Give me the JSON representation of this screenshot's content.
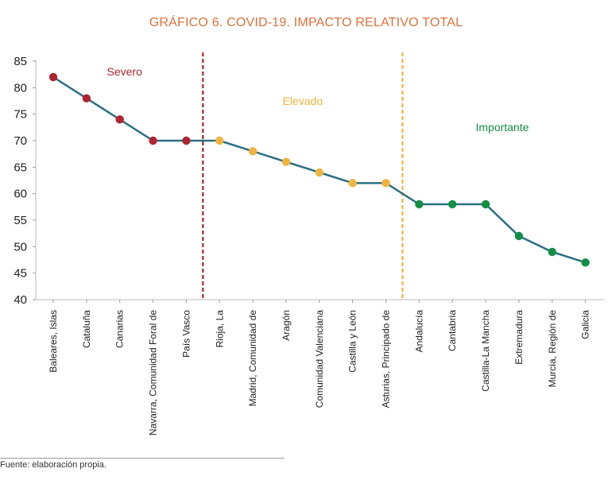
{
  "chart_data": {
    "type": "line",
    "title": "GRÁFICO 6. COVID-19. IMPACTO RELATIVO TOTAL",
    "categories": [
      "Baleares, Islas",
      "Cataluña",
      "Canarias",
      "Navarra, Comunidad Foral de",
      "País Vasco",
      "Rioja, La",
      "Madrid, Comunidad de",
      "Aragón",
      "Comunidad Valenciana",
      "Castilla y León",
      "Asturias, Principado de",
      "Andalucía",
      "Cantabria",
      "Castilla-La Mancha",
      "Extremadura",
      "Murcia, Región de",
      "Galicia"
    ],
    "values": [
      82,
      78,
      74,
      70,
      70,
      70,
      68,
      66,
      64,
      62,
      62,
      58,
      58,
      58,
      52,
      49,
      47
    ],
    "ylim": [
      40,
      85
    ],
    "yticks": [
      85,
      80,
      75,
      70,
      65,
      60,
      55,
      50,
      45,
      40
    ],
    "line_color": "#2b6f82",
    "zones": [
      {
        "label": "Severo",
        "color": "#b0242f",
        "from": 0,
        "to": 4
      },
      {
        "label": "Elevado",
        "color": "#f1b33f",
        "from": 5,
        "to": 10
      },
      {
        "label": "Importante",
        "color": "#138f45",
        "from": 11,
        "to": 16
      }
    ],
    "grid": false,
    "source": "Fuente: elaboración propia."
  }
}
